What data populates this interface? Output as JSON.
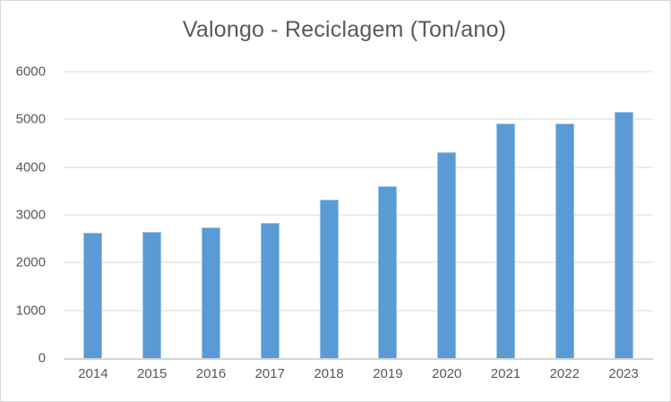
{
  "chart_data": {
    "type": "bar",
    "title": "Valongo - Reciclagem (Ton/ano)",
    "categories": [
      "2014",
      "2015",
      "2016",
      "2017",
      "2018",
      "2019",
      "2020",
      "2021",
      "2022",
      "2023"
    ],
    "values": [
      2630,
      2650,
      2730,
      2840,
      3320,
      3600,
      4320,
      4910,
      4910,
      5150
    ],
    "xlabel": "",
    "ylabel": "",
    "ylim": [
      0,
      6000
    ],
    "yticks": [
      0,
      1000,
      2000,
      3000,
      4000,
      5000,
      6000
    ],
    "grid": true,
    "legend": false,
    "colors": {
      "bar_fill": "#5b9bd5",
      "bar_edge": "#9cc2e5",
      "gridline": "#d9d9d9",
      "axis_line": "#d5d5d5",
      "text": "#595959",
      "frame_border": "#d9d9d9",
      "background": "#ffffff"
    }
  }
}
